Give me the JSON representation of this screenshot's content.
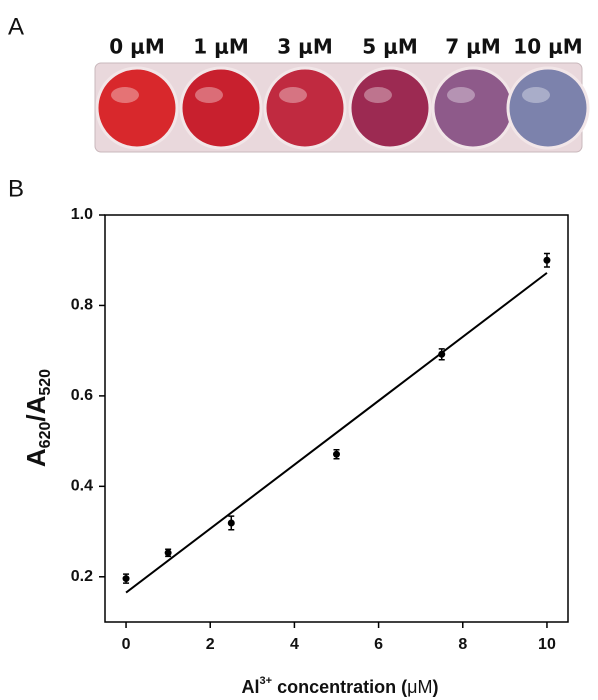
{
  "panel_a": {
    "label": "A",
    "wells": [
      {
        "label": "0 μM",
        "color": "#d8282c"
      },
      {
        "label": "1 μM",
        "color": "#c8202e"
      },
      {
        "label": "3 μM",
        "color": "#c02a40"
      },
      {
        "label": "5 μM",
        "color": "#9c2a52"
      },
      {
        "label": "7 μM",
        "color": "#8e5a8a"
      },
      {
        "label": "10 μM",
        "color": "#7c82ac"
      }
    ]
  },
  "chart_data": {
    "type": "scatter",
    "panel_label": "B",
    "xlabel": [
      "Al",
      "3+",
      " concentration (",
      "μM",
      ")"
    ],
    "ylabel": [
      "A",
      "620",
      "/A",
      "520"
    ],
    "x": [
      0,
      1,
      2.5,
      5,
      7.5,
      10
    ],
    "series": [
      {
        "values": [
          0.196,
          0.253,
          0.319,
          0.471,
          0.692,
          0.9
        ],
        "errors": [
          0.01,
          0.008,
          0.015,
          0.01,
          0.012,
          0.015
        ],
        "color": "#000000"
      }
    ],
    "fit": {
      "x": [
        0,
        10
      ],
      "values": [
        0.165,
        0.872
      ],
      "color": "#000000"
    },
    "xlim": [
      -0.5,
      10.5
    ],
    "ylim": [
      0.1,
      1.0
    ],
    "xticks": [
      0,
      2,
      4,
      6,
      8,
      10
    ],
    "yticks": [
      0.2,
      0.4,
      0.6,
      0.8,
      {
        "value": 1,
        "label": "1.0"
      }
    ]
  }
}
